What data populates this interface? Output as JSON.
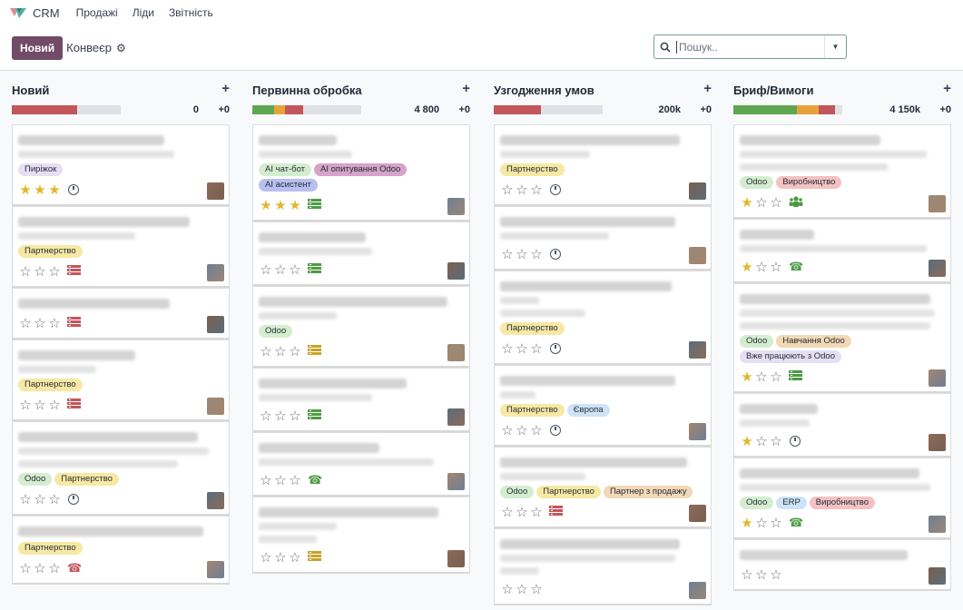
{
  "app": {
    "name": "CRM",
    "menu": [
      "Продажі",
      "Ліди",
      "Звітність"
    ]
  },
  "control": {
    "new_label": "Новий",
    "breadcrumb": "Конвеєр",
    "search_placeholder": "Пошук.."
  },
  "columns": [
    {
      "title": "Новий",
      "amount": "0",
      "count": "+0",
      "progress": [
        [
          "#c2565a",
          0.6
        ]
      ],
      "cards": [
        {
          "lines": 2,
          "tags": [
            "Пиріжок"
          ],
          "stars": 3,
          "activity": "clock",
          "w": [
            75,
            80
          ]
        },
        {
          "lines": 2,
          "tags": [
            "Партнерство"
          ],
          "stars": 0,
          "activity": "list-red",
          "w": [
            88,
            60
          ]
        },
        {
          "lines": 1,
          "tags": [],
          "stars": 0,
          "activity": "list-red",
          "w": [
            78
          ]
        },
        {
          "lines": 2,
          "tags": [
            "Партнерство"
          ],
          "stars": 0,
          "activity": "list-red",
          "w": [
            60,
            40
          ]
        },
        {
          "lines": 3,
          "tags": [
            "Odoo",
            "Партнерство"
          ],
          "stars": 0,
          "activity": "clock",
          "w": [
            92,
            98,
            82
          ]
        },
        {
          "lines": 1,
          "tags": [
            "Партнерство"
          ],
          "stars": 0,
          "activity": "phone-red",
          "w": [
            95
          ]
        }
      ]
    },
    {
      "title": "Первинна обробка",
      "amount": "4 800",
      "count": "+0",
      "progress": [
        [
          "#5fa654",
          0.2
        ],
        [
          "#e8a23b",
          0.1
        ],
        [
          "#c2565a",
          0.17
        ]
      ],
      "cards": [
        {
          "lines": 2,
          "tags": [
            "AI чат-бот",
            "AI опитування Odoo",
            "AI асистент"
          ],
          "stars": 3,
          "activity": "list-green",
          "w": [
            40,
            48
          ]
        },
        {
          "lines": 2,
          "tags": [],
          "stars": 0,
          "activity": "list-green",
          "w": [
            55,
            58
          ]
        },
        {
          "lines": 2,
          "tags": [
            "Odoo"
          ],
          "stars": 0,
          "activity": "list-yellow",
          "w": [
            97,
            40
          ]
        },
        {
          "lines": 2,
          "tags": [],
          "stars": 0,
          "activity": "list-green",
          "w": [
            76,
            58
          ]
        },
        {
          "lines": 2,
          "tags": [],
          "stars": 0,
          "activity": "phone-green",
          "w": [
            62,
            90
          ]
        },
        {
          "lines": 3,
          "tags": [],
          "stars": 0,
          "activity": "list-yellow",
          "w": [
            92,
            40,
            30
          ]
        }
      ]
    },
    {
      "title": "Узгодження умов",
      "amount": "200k",
      "count": "+0",
      "progress": [
        [
          "#c2565a",
          0.43
        ]
      ],
      "cards": [
        {
          "lines": 2,
          "tags": [
            "Партнерство"
          ],
          "stars": 0,
          "activity": "clock",
          "w": [
            92,
            46
          ]
        },
        {
          "lines": 2,
          "tags": [],
          "stars": 0,
          "activity": "clock",
          "w": [
            90,
            56
          ]
        },
        {
          "lines": 3,
          "tags": [
            "Партнерство"
          ],
          "stars": 0,
          "activity": "clock",
          "w": [
            88,
            20,
            44
          ]
        },
        {
          "lines": 2,
          "tags": [
            "Партнерство",
            "Європа"
          ],
          "stars": 0,
          "activity": "clock",
          "w": [
            90,
            18
          ]
        },
        {
          "lines": 2,
          "tags": [
            "Odoo",
            "Партнерство",
            "Партнер з продажу"
          ],
          "stars": 0,
          "activity": "list-red",
          "w": [
            96,
            44
          ]
        },
        {
          "lines": 3,
          "tags": [],
          "stars": 0,
          "activity": "none",
          "w": [
            92,
            90,
            20
          ]
        }
      ]
    },
    {
      "title": "Бриф/Вимоги",
      "amount": "4 150k",
      "count": "+0",
      "progress": [
        [
          "#5fa654",
          0.58
        ],
        [
          "#e8a23b",
          0.2
        ],
        [
          "#c2565a",
          0.15
        ]
      ],
      "cards": [
        {
          "lines": 3,
          "tags": [
            "Odoo",
            "Виробництво"
          ],
          "stars": 1,
          "activity": "people-green",
          "w": [
            72,
            96,
            76
          ]
        },
        {
          "lines": 2,
          "tags": [],
          "stars": 1,
          "activity": "phone-green",
          "w": [
            38,
            96
          ]
        },
        {
          "lines": 3,
          "tags": [
            "Odoo",
            "Навчання Odoo",
            "Вже працюють з Odoo"
          ],
          "stars": 1,
          "activity": "list-green",
          "w": [
            98,
            100,
            98
          ]
        },
        {
          "lines": 2,
          "tags": [],
          "stars": 1,
          "activity": "clock",
          "w": [
            40,
            36
          ]
        },
        {
          "lines": 2,
          "tags": [
            "Odoo",
            "ERP",
            "Виробництво"
          ],
          "stars": 1,
          "activity": "phone-green",
          "w": [
            92,
            98
          ]
        },
        {
          "lines": 1,
          "tags": [],
          "stars": 0,
          "activity": "none",
          "w": [
            86
          ]
        }
      ]
    }
  ],
  "tag_colors": {
    "Пиріжок": "#e6dff3",
    "Партнерство": "#f7e8a3",
    "Odoo": "#d4edcf",
    "AI чат-бот": "#d4edcf",
    "AI опитування Odoo": "#d6a3c9",
    "AI асистент": "#b8c0f0",
    "Європа": "#cfe3f7",
    "Партнер з продажу": "#f3d8b6",
    "Виробництво": "#f4c2c2",
    "Навчання Odoo": "#f3d8b6",
    "Вже працюють з Odoo": "#e6dff3",
    "ERP": "#cfe3f7"
  }
}
